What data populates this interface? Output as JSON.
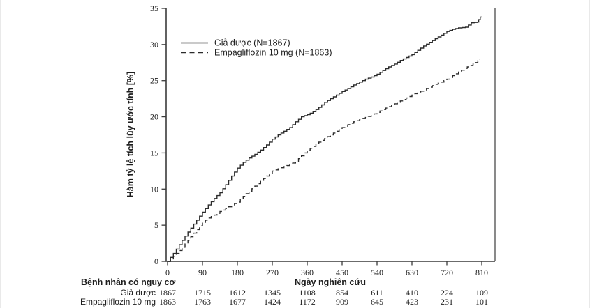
{
  "chart_data": {
    "type": "line",
    "subtype": "kaplan-meier-cumulative-incidence",
    "title": "",
    "xlabel": "Ngày nghiên cứu",
    "ylabel": "Hàm tỷ lệ tích lũy ước tính [%]",
    "xlim": [
      0,
      810
    ],
    "ylim": [
      0,
      35
    ],
    "x_ticks": [
      0,
      90,
      180,
      270,
      360,
      450,
      540,
      630,
      720,
      810
    ],
    "y_ticks": [
      0,
      5,
      10,
      15,
      20,
      25,
      30,
      35
    ],
    "grid": false,
    "legend_position": "top-left-inside",
    "line_color": "#2b2b2b",
    "series": [
      {
        "name": "Giả dược (N=1867)",
        "style": "solid",
        "points": [
          [
            0,
            0
          ],
          [
            15,
            1.1
          ],
          [
            30,
            2.3
          ],
          [
            45,
            3.5
          ],
          [
            60,
            4.6
          ],
          [
            75,
            5.7
          ],
          [
            90,
            6.8
          ],
          [
            105,
            7.8
          ],
          [
            120,
            8.7
          ],
          [
            135,
            9.5
          ],
          [
            150,
            10.6
          ],
          [
            165,
            11.8
          ],
          [
            180,
            12.9
          ],
          [
            195,
            13.7
          ],
          [
            210,
            14.3
          ],
          [
            225,
            14.8
          ],
          [
            240,
            15.4
          ],
          [
            255,
            16.1
          ],
          [
            270,
            16.9
          ],
          [
            285,
            17.5
          ],
          [
            300,
            18.0
          ],
          [
            315,
            18.5
          ],
          [
            330,
            19.3
          ],
          [
            345,
            20.0
          ],
          [
            360,
            20.3
          ],
          [
            375,
            20.7
          ],
          [
            390,
            21.3
          ],
          [
            405,
            22.0
          ],
          [
            420,
            22.5
          ],
          [
            435,
            23.0
          ],
          [
            450,
            23.5
          ],
          [
            465,
            23.9
          ],
          [
            480,
            24.4
          ],
          [
            495,
            24.8
          ],
          [
            510,
            25.2
          ],
          [
            525,
            25.5
          ],
          [
            540,
            25.9
          ],
          [
            555,
            26.4
          ],
          [
            570,
            26.9
          ],
          [
            585,
            27.3
          ],
          [
            600,
            27.8
          ],
          [
            615,
            28.2
          ],
          [
            630,
            28.6
          ],
          [
            645,
            29.2
          ],
          [
            660,
            29.8
          ],
          [
            675,
            30.3
          ],
          [
            690,
            30.8
          ],
          [
            705,
            31.3
          ],
          [
            720,
            31.8
          ],
          [
            735,
            32.1
          ],
          [
            750,
            32.3
          ],
          [
            768,
            32.4
          ],
          [
            783,
            33.0
          ],
          [
            798,
            33.1
          ],
          [
            806,
            33.8
          ],
          [
            810,
            33.8
          ]
        ]
      },
      {
        "name": "Empagliflozin 10 mg (N=1863)",
        "style": "dashed",
        "points": [
          [
            0,
            0
          ],
          [
            15,
            0.7
          ],
          [
            30,
            1.5
          ],
          [
            45,
            2.4
          ],
          [
            60,
            3.4
          ],
          [
            75,
            4.4
          ],
          [
            90,
            5.4
          ],
          [
            105,
            6.0
          ],
          [
            120,
            6.4
          ],
          [
            135,
            6.9
          ],
          [
            150,
            7.3
          ],
          [
            165,
            7.8
          ],
          [
            180,
            8.2
          ],
          [
            195,
            9.0
          ],
          [
            210,
            9.7
          ],
          [
            225,
            10.4
          ],
          [
            240,
            11.1
          ],
          [
            255,
            11.8
          ],
          [
            270,
            12.5
          ],
          [
            285,
            12.8
          ],
          [
            300,
            13.1
          ],
          [
            315,
            13.4
          ],
          [
            330,
            13.8
          ],
          [
            345,
            14.6
          ],
          [
            360,
            15.4
          ],
          [
            375,
            15.9
          ],
          [
            390,
            16.5
          ],
          [
            405,
            17.0
          ],
          [
            420,
            17.5
          ],
          [
            435,
            18.0
          ],
          [
            450,
            18.5
          ],
          [
            465,
            18.9
          ],
          [
            480,
            19.3
          ],
          [
            495,
            19.6
          ],
          [
            510,
            19.9
          ],
          [
            525,
            20.2
          ],
          [
            540,
            20.6
          ],
          [
            555,
            21.0
          ],
          [
            570,
            21.4
          ],
          [
            585,
            21.8
          ],
          [
            600,
            22.2
          ],
          [
            615,
            22.6
          ],
          [
            630,
            23.0
          ],
          [
            645,
            23.4
          ],
          [
            660,
            23.7
          ],
          [
            675,
            24.1
          ],
          [
            690,
            24.5
          ],
          [
            705,
            24.8
          ],
          [
            720,
            25.2
          ],
          [
            735,
            25.7
          ],
          [
            750,
            26.2
          ],
          [
            765,
            26.7
          ],
          [
            780,
            27.1
          ],
          [
            795,
            27.5
          ],
          [
            805,
            28.0
          ]
        ]
      }
    ],
    "risk_table": {
      "header": "Bệnh nhân có nguy cơ",
      "rows": [
        {
          "label": "Giả dược",
          "values": [
            1867,
            1715,
            1612,
            1345,
            1108,
            854,
            611,
            410,
            224,
            109
          ]
        },
        {
          "label": "Empagliflozin 10 mg",
          "values": [
            1863,
            1763,
            1677,
            1424,
            1172,
            909,
            645,
            423,
            231,
            101
          ]
        }
      ]
    }
  }
}
